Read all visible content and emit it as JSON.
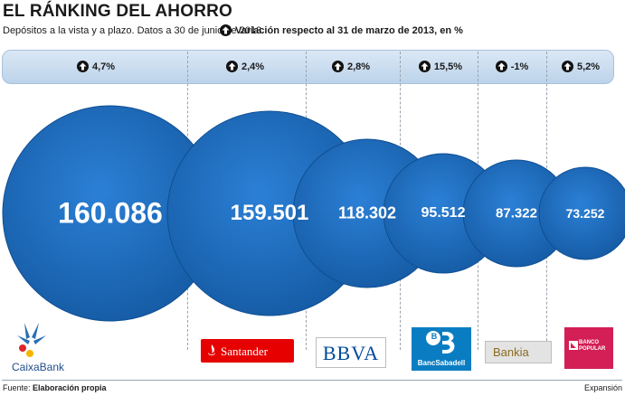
{
  "title": "EL RÁNKING DEL AHORRO",
  "subtitle": "Depósitos a la vista y a plazo. Datos a 30 de junio de 2013.",
  "legend_text": "Variación respecto al 31 de marzo de 2013, en %",
  "colors": {
    "bubble": "#1f6fc4",
    "bubble_dark": "#155aa3",
    "var_bar": "#cfe0f1"
  },
  "chart_data": {
    "type": "bubble",
    "title": "EL RÁNKING DEL AHORRO",
    "unit": "Depósitos a la vista y a plazo",
    "categories": [
      "CaixaBank",
      "Santander",
      "BBVA",
      "Banc Sabadell",
      "Bankia",
      "Banco Popular"
    ],
    "values": [
      160086,
      159501,
      118302,
      95512,
      87322,
      73252
    ],
    "value_labels": [
      "160.086",
      "159.501",
      "118.302",
      "95.512",
      "87.322",
      "73.252"
    ],
    "variation_labels": [
      "4,7%",
      "2,4%",
      "2,8%",
      "15,5%",
      "-1%",
      "5,2%"
    ],
    "variation_values": [
      4.7,
      2.4,
      2.8,
      15.5,
      -1,
      5.2
    ]
  },
  "logos": {
    "caixabank": "CaixaBank",
    "santander": "Santander",
    "bbva": "BBVA",
    "sabadell_letter": "B",
    "sabadell": "BancSabadell",
    "bankia": "Bankia",
    "popular_line1": "BANCO",
    "popular_line2": "POPULAR"
  },
  "footer": {
    "source_label": "Fuente: ",
    "source": "Elaboración propia",
    "credit": "Expansión"
  }
}
